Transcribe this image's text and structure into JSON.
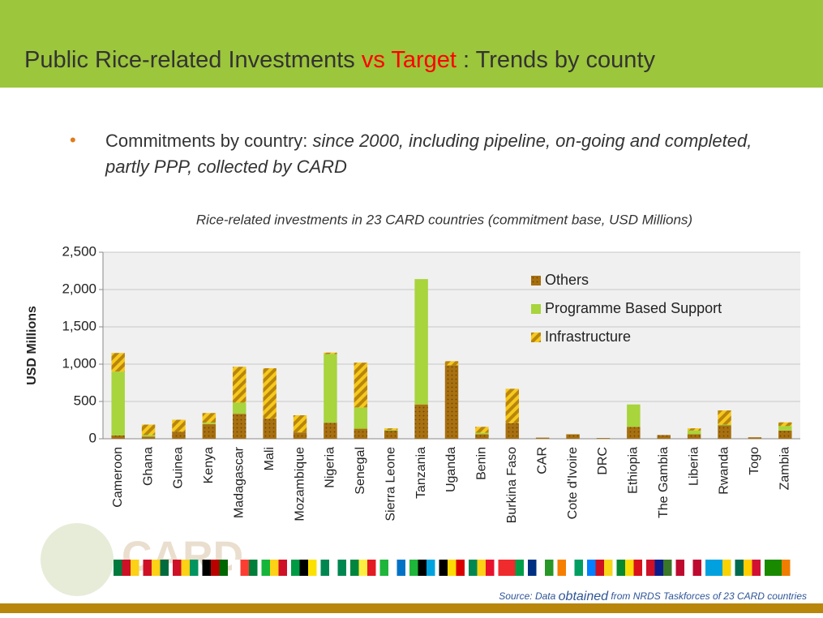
{
  "slide": {
    "title_parts": [
      {
        "text": "Public Rice-related Investments ",
        "color": "#333333"
      },
      {
        "text": "vs Target",
        "color": "#ff0000"
      },
      {
        "text": " : Trends by county",
        "color": "#333333"
      }
    ],
    "bullet_parts": [
      {
        "text": "Commitments by country: ",
        "italic": false
      },
      {
        "text": "since 2000, including pipeline, on-going and completed, partly PPP, collected by CARD",
        "italic": true
      }
    ],
    "logo_text": "CARD",
    "source_parts": [
      {
        "text": "Source: Data ",
        "size": 12
      },
      {
        "text": "obtained",
        "size": 16
      },
      {
        "text": " from NRDS Taskforces of 23 CARD countries",
        "size": 12
      }
    ]
  },
  "chart_data": {
    "type": "stacked_bar",
    "title": "Rice-related investments in 23 CARD countries (commitment base, USD Millions)",
    "y_label": "USD Millions",
    "categories": [
      "Cameroon",
      "Ghana",
      "Guinea",
      "Kenya",
      "Madagascar",
      "Mali",
      "Mozambique",
      "Nigeria",
      "Senegal",
      "Sierra Leone",
      "Tanzania",
      "Uganda",
      "Benin",
      "Burkina Faso",
      "CAR",
      "Cote d'Ivoire",
      "DRC",
      "Ethiopia",
      "The Gambia",
      "Liberia",
      "Rwanda",
      "Togo",
      "Zambia"
    ],
    "series": [
      {
        "name": "Others",
        "color": "#a8700f",
        "pattern": "dots",
        "values": [
          45,
          30,
          95,
          195,
          335,
          270,
          85,
          215,
          135,
          110,
          460,
          985,
          60,
          210,
          15,
          60,
          10,
          160,
          50,
          60,
          180,
          20,
          110
        ]
      },
      {
        "name": "Programme Based Support",
        "color": "#a8d43c",
        "pattern": "none",
        "values": [
          855,
          20,
          0,
          20,
          150,
          0,
          0,
          920,
          285,
          10,
          1680,
          0,
          20,
          0,
          0,
          0,
          0,
          300,
          0,
          50,
          10,
          0,
          60
        ]
      },
      {
        "name": "Infrastructure",
        "color": "#f7c81e",
        "pattern": "hatch",
        "values": [
          250,
          140,
          160,
          130,
          480,
          675,
          230,
          20,
          600,
          20,
          0,
          55,
          80,
          460,
          0,
          0,
          0,
          0,
          0,
          30,
          190,
          0,
          50
        ]
      }
    ],
    "ylim": [
      0,
      2500
    ],
    "yticks": [
      0,
      500,
      {
        "value": 1000,
        "label": "1,000"
      },
      {
        "value": 1500,
        "label": "1,500"
      },
      {
        "value": 2000,
        "label": "2,000"
      },
      {
        "value": 2500,
        "label": "2,500"
      }
    ],
    "grid": true,
    "legend": "top-right"
  }
}
